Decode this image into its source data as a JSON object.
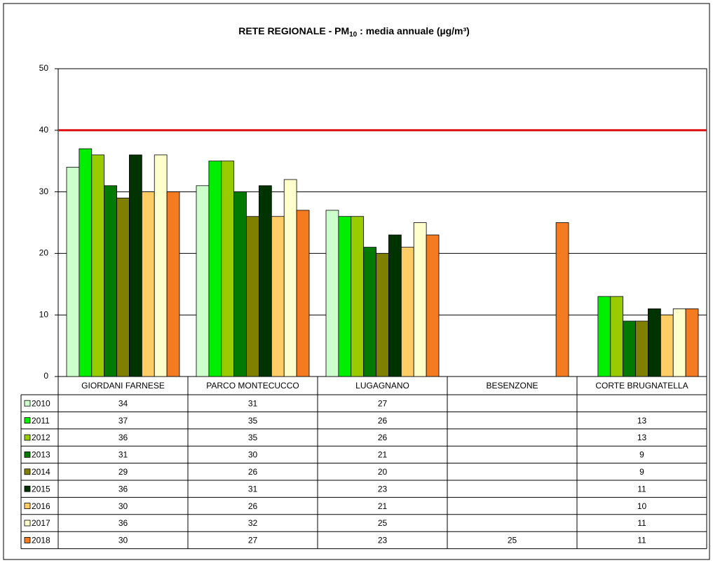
{
  "chart_data": {
    "type": "bar",
    "title": [
      "RETE REGIONALE - PM",
      "10",
      " : media annuale (µg/m³)"
    ],
    "categories": [
      "GIORDANI FARNESE",
      "PARCO MONTECUCCO",
      "LUGAGNANO",
      "BESENZONE",
      "CORTE BRUGNATELLA"
    ],
    "series": [
      {
        "name": "2010",
        "color": "#ccffcc",
        "values": [
          34,
          31,
          27,
          null,
          null
        ]
      },
      {
        "name": "2011",
        "color": "#00ee00",
        "values": [
          37,
          35,
          26,
          null,
          13
        ]
      },
      {
        "name": "2012",
        "color": "#99cc00",
        "values": [
          36,
          35,
          26,
          null,
          13
        ]
      },
      {
        "name": "2013",
        "color": "#007a00",
        "values": [
          31,
          30,
          21,
          null,
          9
        ]
      },
      {
        "name": "2014",
        "color": "#808000",
        "values": [
          29,
          26,
          20,
          null,
          9
        ]
      },
      {
        "name": "2015",
        "color": "#003300",
        "values": [
          36,
          31,
          23,
          null,
          11
        ]
      },
      {
        "name": "2016",
        "color": "#ffcc66",
        "values": [
          30,
          26,
          21,
          null,
          10
        ]
      },
      {
        "name": "2017",
        "color": "#ffffcc",
        "values": [
          36,
          32,
          25,
          null,
          11
        ]
      },
      {
        "name": "2018",
        "color": "#f47b20",
        "values": [
          30,
          27,
          23,
          25,
          11
        ]
      }
    ],
    "ylim": [
      0,
      50
    ],
    "yticks": [
      0,
      10,
      20,
      30,
      40,
      50
    ],
    "grid": true,
    "reference_line": {
      "value": 40,
      "color": "#dd1111"
    },
    "data_table": true
  }
}
